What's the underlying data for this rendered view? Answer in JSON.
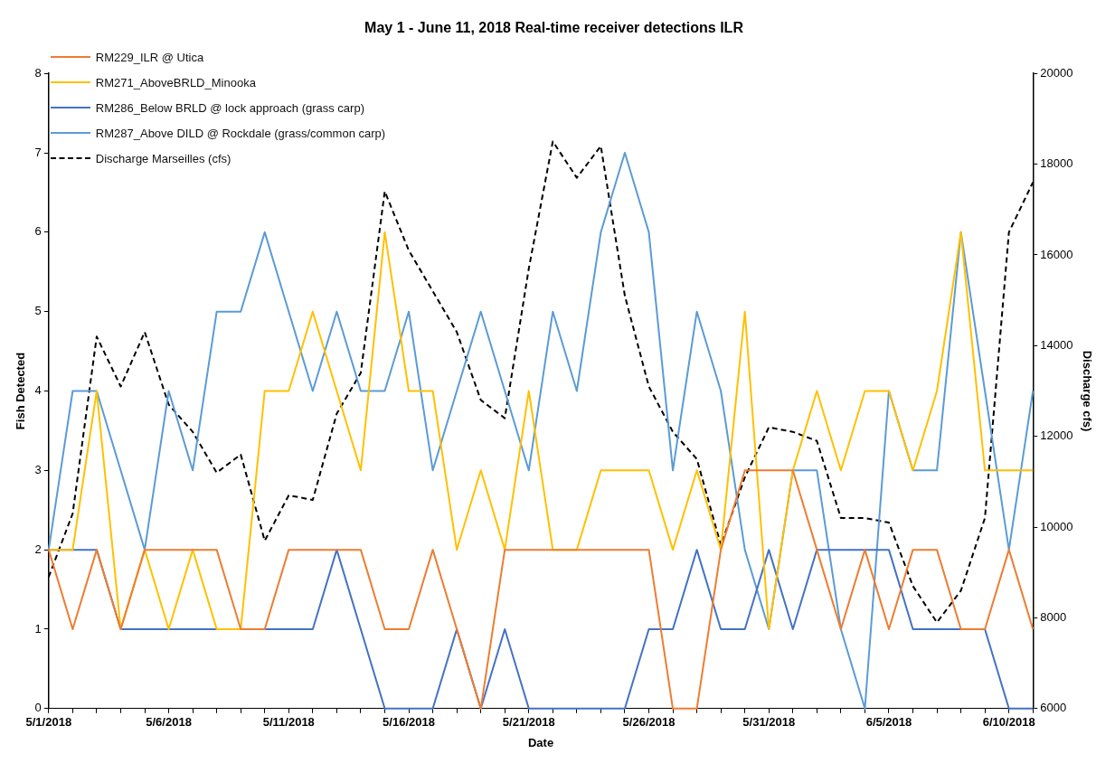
{
  "chart_data": {
    "type": "line",
    "title": "May 1 - June 11, 2018 Real-time receiver detections ILR",
    "xlabel": "Date",
    "ylabel": "Fish Detected",
    "y2label": "Discharge cfs)",
    "categories": [
      "5/1/2018",
      null,
      null,
      null,
      null,
      "5/6/2018",
      null,
      null,
      null,
      null,
      "5/11/2018",
      null,
      null,
      null,
      null,
      "5/16/2018",
      null,
      null,
      null,
      null,
      "5/21/2018",
      null,
      null,
      null,
      null,
      "5/26/2018",
      null,
      null,
      null,
      null,
      "5/31/2018",
      null,
      null,
      null,
      null,
      "6/5/2018",
      null,
      null,
      null,
      null,
      "6/10/2018",
      null
    ],
    "series": [
      {
        "name": "RM229_ILR @ Utica",
        "color": "#ed7d31",
        "values": [
          2,
          1,
          2,
          1,
          2,
          2,
          2,
          2,
          1,
          1,
          2,
          2,
          2,
          2,
          1,
          1,
          2,
          1,
          0,
          2,
          2,
          2,
          2,
          2,
          2,
          2,
          0,
          0,
          2,
          3,
          3,
          3,
          2,
          1,
          2,
          1,
          2,
          2,
          1,
          1,
          2,
          1
        ]
      },
      {
        "name": "RM271_AboveBRLD_Minooka",
        "color": "#ffc000",
        "values": [
          2,
          2,
          4,
          1,
          2,
          1,
          2,
          1,
          1,
          4,
          4,
          5,
          4,
          3,
          6,
          4,
          4,
          2,
          3,
          2,
          4,
          2,
          2,
          3,
          3,
          3,
          2,
          3,
          2,
          5,
          1,
          3,
          4,
          3,
          4,
          4,
          3,
          4,
          6,
          3,
          3,
          3
        ]
      },
      {
        "name": "RM286_Below BRLD @ lock approach (grass carp)",
        "color": "#4472c4",
        "values": [
          2,
          2,
          2,
          1,
          1,
          1,
          1,
          1,
          1,
          1,
          1,
          1,
          2,
          1,
          0,
          0,
          0,
          1,
          0,
          1,
          0,
          0,
          0,
          0,
          0,
          1,
          1,
          2,
          1,
          1,
          2,
          1,
          2,
          2,
          2,
          2,
          1,
          1,
          1,
          1,
          0,
          0
        ]
      },
      {
        "name": "RM287_Above DILD @ Rockdale (grass/common carp)",
        "color": "#5b9bd5",
        "values": [
          2,
          4,
          4,
          3,
          2,
          4,
          3,
          5,
          5,
          6,
          5,
          4,
          5,
          4,
          4,
          5,
          3,
          4,
          5,
          4,
          3,
          5,
          4,
          6,
          7,
          6,
          3,
          5,
          4,
          2,
          1,
          3,
          3,
          1,
          0,
          4,
          3,
          3,
          6,
          4,
          2,
          4
        ]
      },
      {
        "name": "Discharge Marseilles (cfs)",
        "color": "#000000",
        "axis": "y2",
        "line_style": "dashed",
        "values": [
          8900,
          10300,
          14200,
          13100,
          14300,
          12700,
          12100,
          11200,
          11600,
          9700,
          10700,
          10600,
          12500,
          13400,
          17400,
          16100,
          15200,
          14300,
          12800,
          12400,
          15700,
          18500,
          17700,
          18400,
          15100,
          13100,
          12100,
          11500,
          9600,
          11100,
          12200,
          12100,
          11900,
          10200,
          10200,
          10100,
          8700,
          7900,
          8600,
          10200,
          16500,
          17600
        ]
      }
    ],
    "ylim": [
      0,
      8
    ],
    "yticks": [
      0,
      1,
      2,
      3,
      4,
      5,
      6,
      7,
      8
    ],
    "y2lim": [
      6000,
      20000
    ],
    "y2ticks": [
      6000,
      8000,
      10000,
      12000,
      14000,
      16000,
      18000,
      20000
    ],
    "grid": false,
    "legend": "top left",
    "marker": "none"
  }
}
